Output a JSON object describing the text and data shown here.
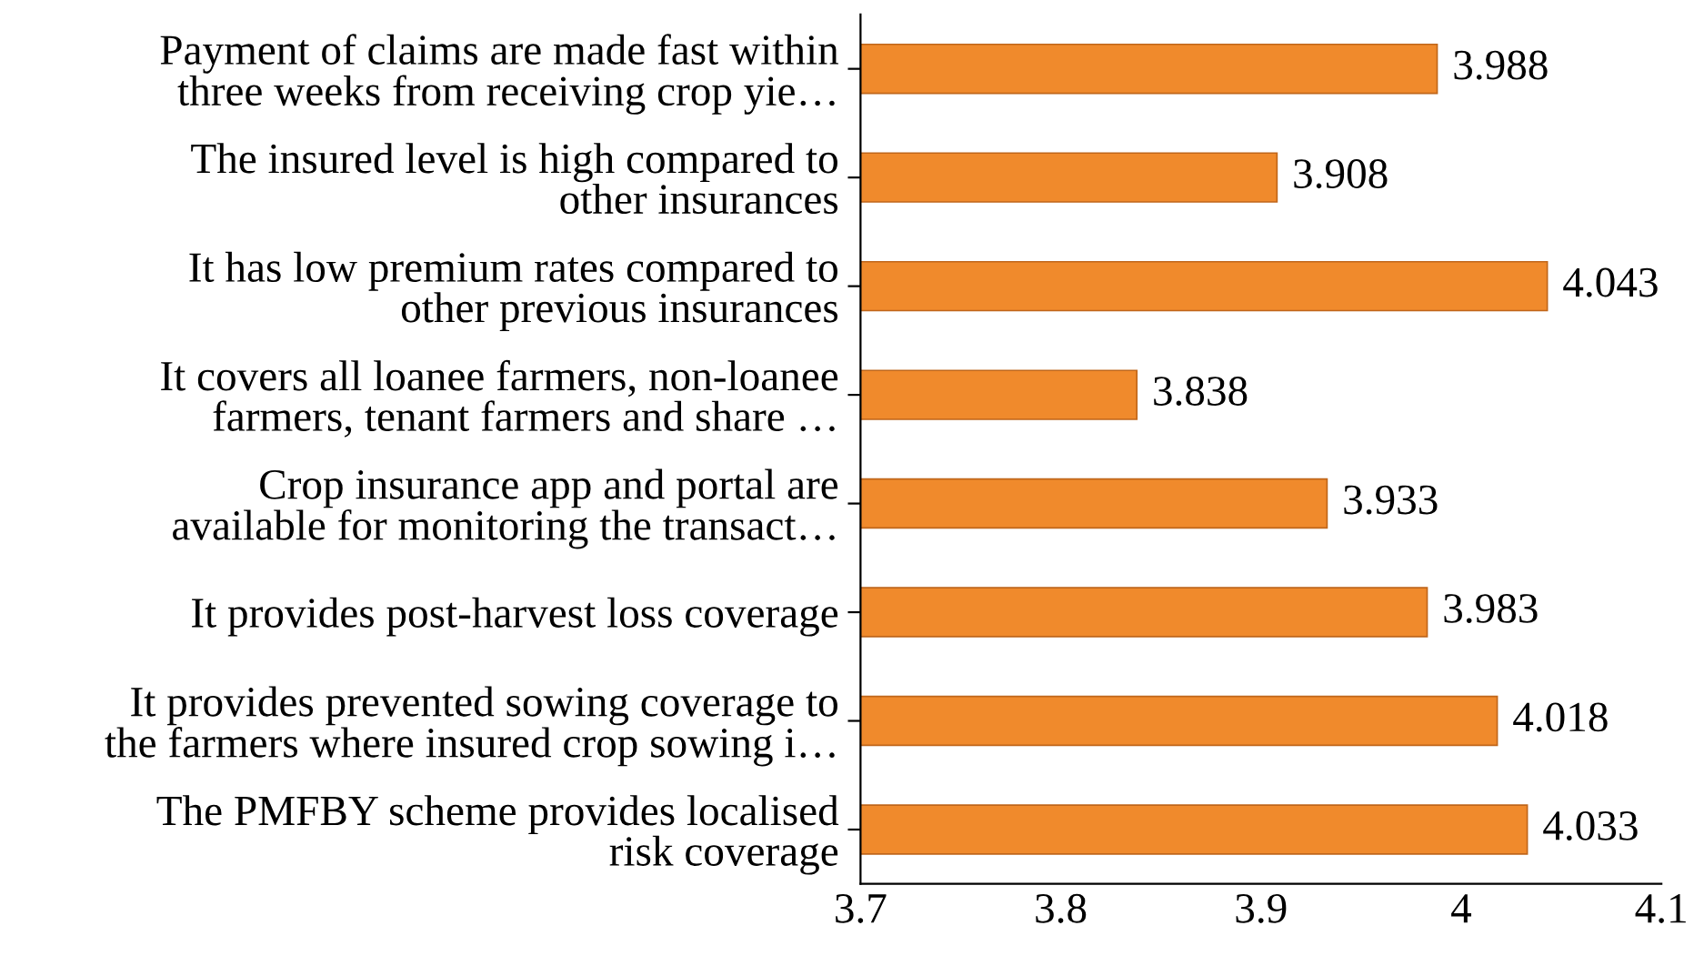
{
  "chart_data": {
    "type": "bar",
    "orientation": "horizontal",
    "categories": [
      "Payment of claims are made fast within\nthree weeks from receiving crop yie…",
      "The insured level is high compared to\nother insurances",
      "It has low premium rates compared to\nother previous insurances",
      "It covers all loanee farmers, non-loanee\nfarmers, tenant farmers and share …",
      "Crop insurance app and portal are\navailable for monitoring the transact…",
      "It provides post-harvest loss coverage",
      "It provides prevented sowing coverage to\nthe farmers where insured crop sowing i…",
      "The PMFBY scheme provides localised\nrisk coverage"
    ],
    "values": [
      3.988,
      3.908,
      4.043,
      3.838,
      3.933,
      3.983,
      4.018,
      4.033
    ],
    "color": "#f08a2c",
    "xlim": [
      3.7,
      4.1
    ],
    "xticks": [
      3.7,
      3.8,
      3.9,
      {
        "value": 4,
        "label": "4"
      },
      4.1
    ],
    "data_labels": true,
    "grid": false,
    "legend": false
  }
}
